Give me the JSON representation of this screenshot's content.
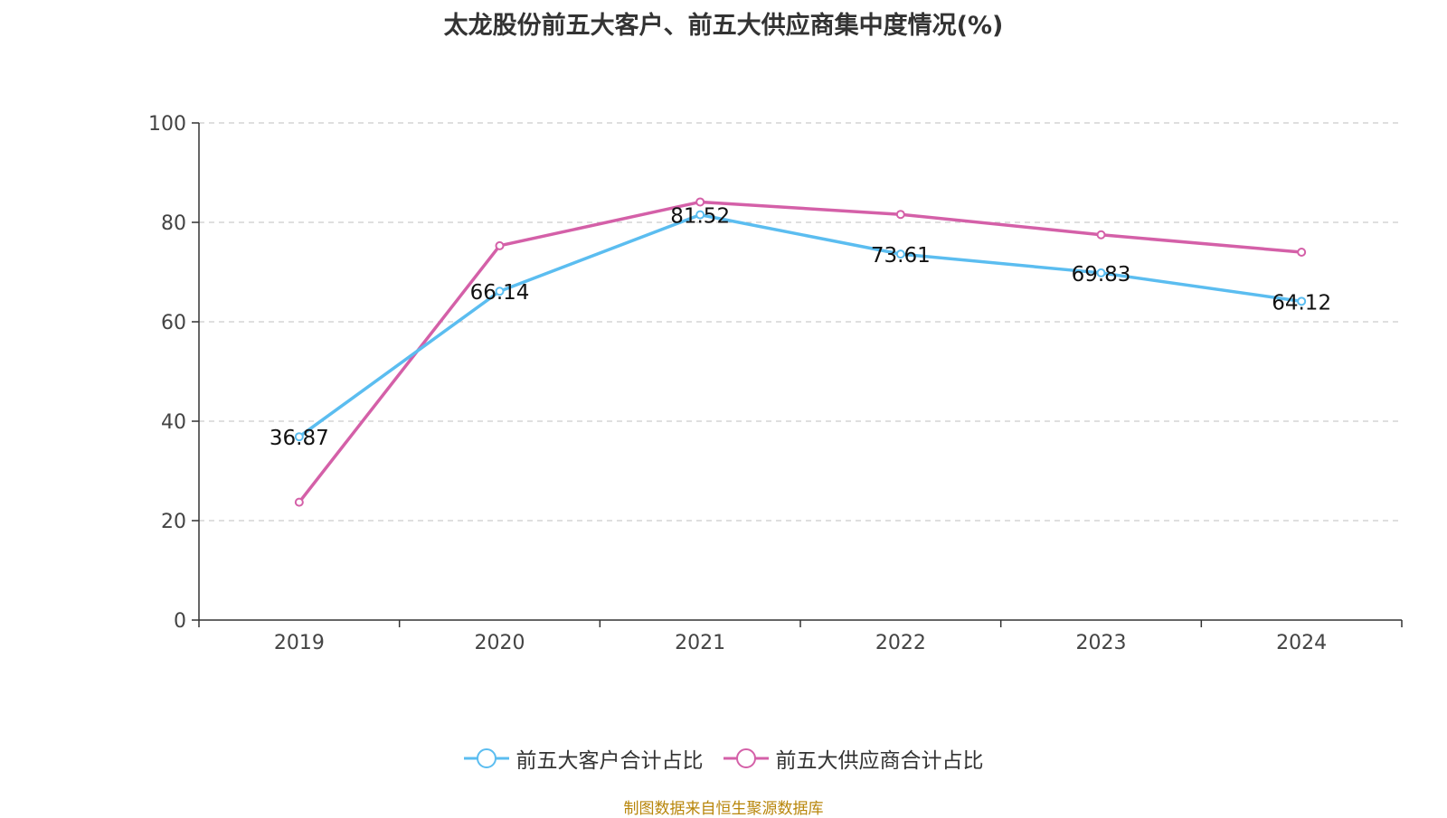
{
  "chart_data": {
    "type": "line",
    "title": "太龙股份前五大客户、前五大供应商集中度情况(%)",
    "categories": [
      "2019",
      "2020",
      "2021",
      "2022",
      "2023",
      "2024"
    ],
    "ylim": [
      0,
      100
    ],
    "yticks": [
      0,
      20,
      40,
      60,
      80,
      100
    ],
    "grid": true,
    "legend_position": "bottom",
    "series": [
      {
        "name": "前五大客户合计占比",
        "color": "#5bbdf0",
        "values": [
          36.87,
          66.14,
          81.52,
          73.61,
          69.83,
          64.12
        ],
        "labels": [
          "36.87",
          "66.14",
          "81.52",
          "73.61",
          "69.83",
          "64.12"
        ]
      },
      {
        "name": "前五大供应商合计占比",
        "color": "#d460a8",
        "values": [
          23.7,
          75.3,
          84.1,
          81.6,
          77.5,
          74.0
        ]
      }
    ],
    "source": "制图数据来自恒生聚源数据库"
  }
}
